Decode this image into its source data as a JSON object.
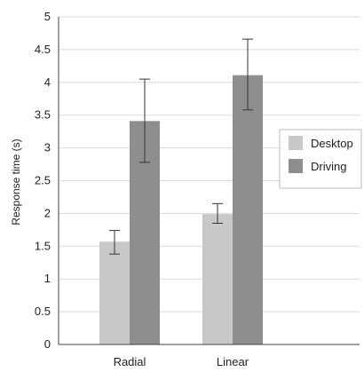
{
  "chart_data": {
    "type": "bar",
    "categories": [
      "Radial",
      "Linear"
    ],
    "series": [
      {
        "name": "Desktop",
        "color": "#c8c8c8",
        "values": [
          1.57,
          1.99
        ],
        "error_low": [
          1.38,
          1.85
        ],
        "error_high": [
          1.74,
          2.15
        ]
      },
      {
        "name": "Driving",
        "color": "#8e8e8e",
        "values": [
          3.41,
          4.11
        ],
        "error_low": [
          2.78,
          3.58
        ],
        "error_high": [
          4.05,
          4.66
        ]
      }
    ],
    "title": "",
    "xlabel": "",
    "ylabel": "Response time (s)",
    "ylim": [
      0,
      5
    ],
    "yticks": [
      "0",
      "0.5",
      "1",
      "1.5",
      "2",
      "2.5",
      "3",
      "3.5",
      "4",
      "4.5",
      "5"
    ],
    "grid": true,
    "legend_position": "right"
  }
}
